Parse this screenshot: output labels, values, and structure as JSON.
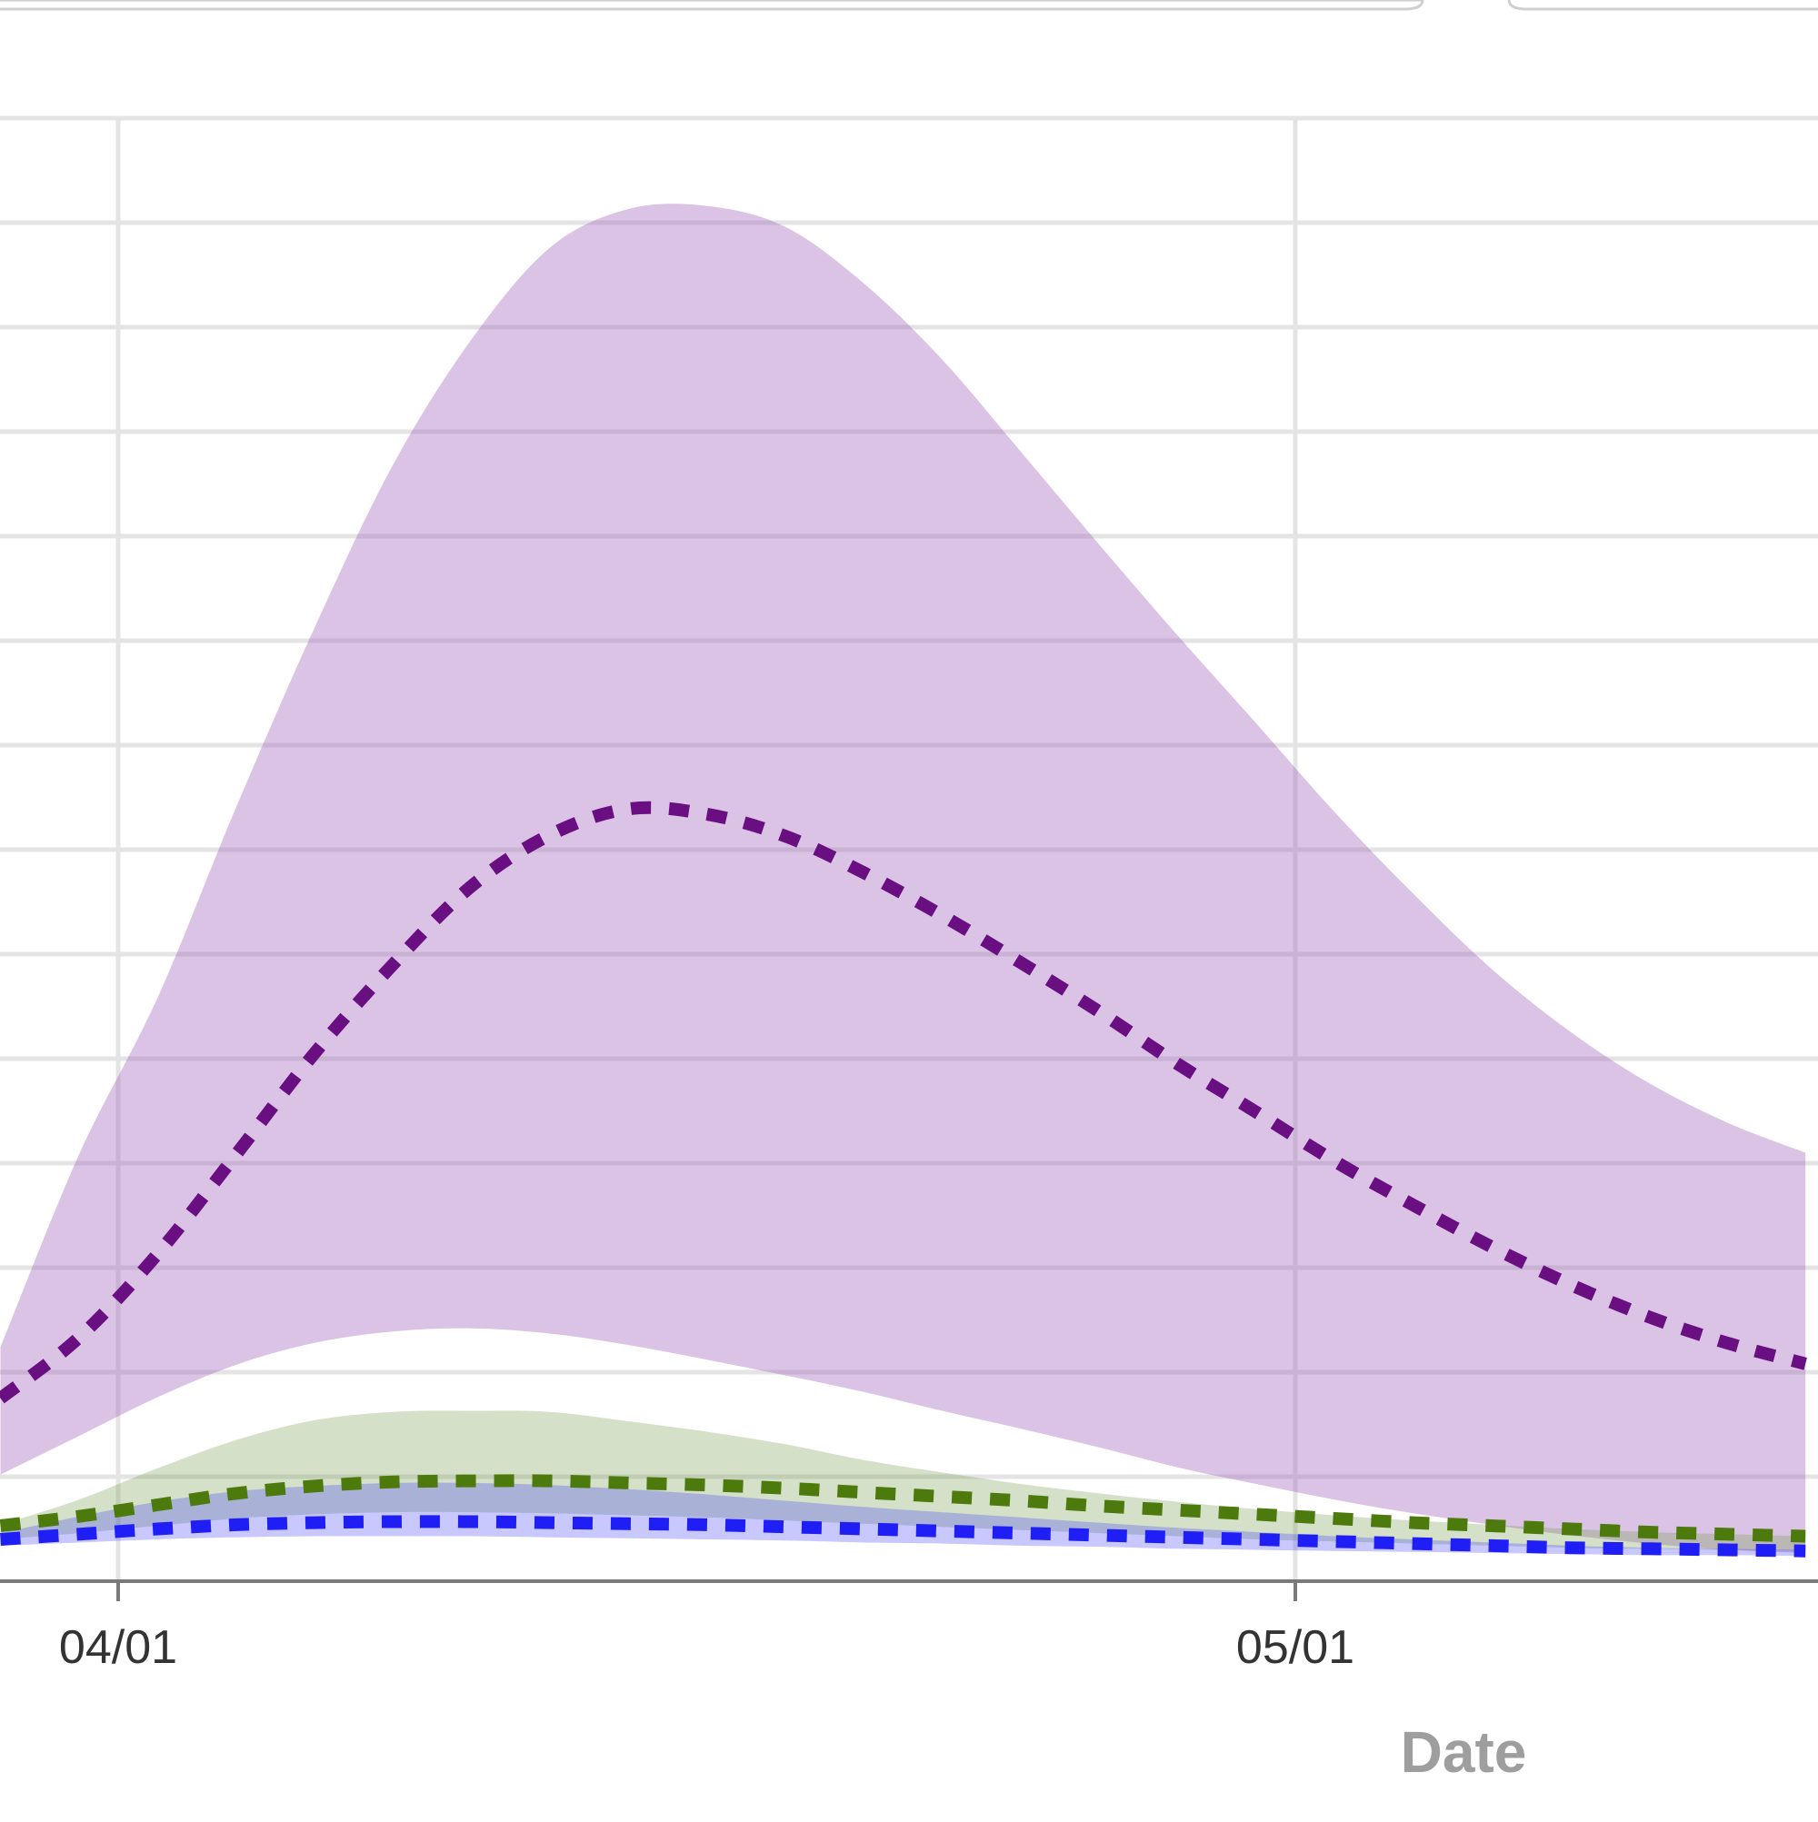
{
  "colors": {
    "purple": "#6a0f82",
    "purple_band": "#9b59b6",
    "green": "#4d7a0d",
    "green_band": "#7aa055",
    "blue": "#1f1ff5",
    "blue_band": "#3b3bff",
    "grid": "#e4e4e4",
    "axis": "#7a7a7a"
  },
  "chart_data": {
    "type": "line",
    "xlabel": "Date",
    "ylabel": "",
    "x_ticks": [
      "04/01",
      "05/01"
    ],
    "series": [
      {
        "color": "#6a0f82",
        "style": "dashed",
        "x": [
          "03/29",
          "03/31",
          "04/02",
          "04/04",
          "04/06",
          "04/08",
          "04/10",
          "04/12",
          "04/14",
          "04/16",
          "04/18",
          "04/20",
          "04/22",
          "04/24",
          "04/26",
          "04/28",
          "04/30",
          "05/02",
          "05/04",
          "05/06",
          "05/08",
          "05/10",
          "05/12",
          "05/14"
        ],
        "values": [
          175,
          233,
          313,
          408,
          505,
          590,
          665,
          714,
          739,
          734,
          713,
          678,
          637,
          592,
          545,
          495,
          449,
          402,
          360,
          320,
          284,
          253,
          228,
          208
        ],
        "band_lower": [
          102,
          139,
          176,
          207,
          228,
          239,
          242,
          237,
          226,
          212,
          197,
          181,
          163,
          146,
          128,
          109,
          93,
          78,
          65,
          54,
          44,
          36,
          30,
          27
        ],
        "band_upper": [
          224,
          408,
          558,
          740,
          912,
          1068,
          1188,
          1276,
          1313,
          1316,
          1296,
          1242,
          1169,
          1081,
          992,
          905,
          821,
          736,
          658,
          586,
          526,
          477,
          439,
          410
        ]
      },
      {
        "color": "#4d7a0d",
        "style": "dashed",
        "x": [
          "03/29",
          "03/31",
          "04/02",
          "04/04",
          "04/06",
          "04/08",
          "04/10",
          "04/12",
          "04/14",
          "04/16",
          "04/18",
          "04/20",
          "04/22",
          "04/24",
          "04/26",
          "04/28",
          "04/30",
          "05/02",
          "05/04",
          "05/06",
          "05/08",
          "05/10",
          "05/12",
          "05/14"
        ],
        "values": [
          53,
          62,
          73,
          84,
          91,
          95,
          96,
          96,
          94,
          92,
          89,
          85,
          81,
          77,
          72,
          68,
          64,
          60,
          56,
          53,
          50,
          47,
          45,
          43
        ],
        "band_lower": [
          40,
          46,
          53,
          60,
          64,
          66,
          66,
          65,
          63,
          61,
          58,
          55,
          52,
          49,
          46,
          43,
          40,
          38,
          36,
          34,
          32,
          31,
          30,
          29
        ],
        "band_upper": [
          54,
          78,
          108,
          135,
          154,
          162,
          163,
          162,
          153,
          143,
          131,
          116,
          104,
          93,
          84,
          76,
          69,
          63,
          58,
          54,
          50,
          47,
          45,
          43
        ]
      },
      {
        "color": "#1f1ff5",
        "style": "dashed",
        "x": [
          "03/29",
          "03/31",
          "04/02",
          "04/04",
          "04/06",
          "04/08",
          "04/10",
          "04/12",
          "04/14",
          "04/16",
          "04/18",
          "04/20",
          "04/22",
          "04/24",
          "04/26",
          "04/28",
          "04/30",
          "05/02",
          "05/04",
          "05/06",
          "05/08",
          "05/10",
          "05/12",
          "05/14"
        ],
        "values": [
          40,
          45,
          50,
          54,
          56,
          57,
          57,
          56,
          55,
          54,
          52,
          50,
          48,
          46,
          44,
          42,
          40,
          38,
          36,
          34,
          32,
          31,
          30,
          29
        ],
        "band_lower": [
          34,
          37,
          40,
          42,
          43,
          43,
          43,
          42,
          41,
          40,
          39,
          37,
          36,
          34,
          33,
          31,
          30,
          29,
          28,
          27,
          26,
          25,
          25,
          24
        ],
        "band_upper": [
          46,
          62,
          76,
          86,
          91,
          94,
          94,
          92,
          88,
          83,
          77,
          71,
          66,
          61,
          56,
          51,
          47,
          43,
          40,
          37,
          34,
          32,
          31,
          30
        ]
      }
    ]
  }
}
